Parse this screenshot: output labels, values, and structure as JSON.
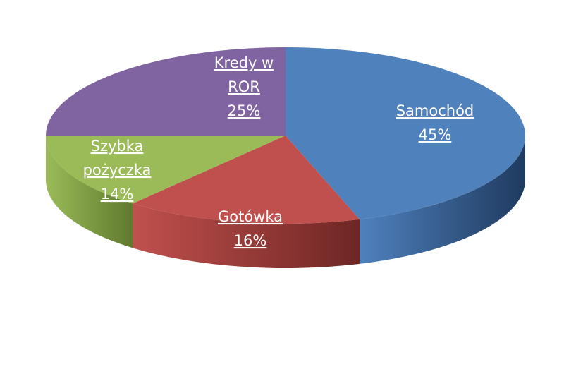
{
  "chart_data": {
    "type": "pie",
    "three_d": true,
    "slices": [
      {
        "label": "Samochód",
        "value": 45,
        "label_lines": [
          "Samochód",
          "45%"
        ],
        "color": "#4f81bd"
      },
      {
        "label": "Gotówka",
        "value": 16,
        "label_lines": [
          "Gotówka",
          "16%"
        ],
        "color": "#c0504d"
      },
      {
        "label": "Szybka pożyczka",
        "value": 14,
        "label_lines": [
          "Szybka",
          "pożyczka",
          "14%"
        ],
        "color": "#9bbb59"
      },
      {
        "label": "Kredy w ROR",
        "value": 25,
        "label_lines": [
          "Kredy w",
          "ROR",
          "25%"
        ],
        "color": "#8064a2"
      }
    ],
    "side_colors": [
      "#1f3a5f",
      "#6e2624",
      "#5f7a2e",
      "#4d3a68"
    ],
    "data_labels": "inside, white, underlined",
    "legend": "none"
  }
}
